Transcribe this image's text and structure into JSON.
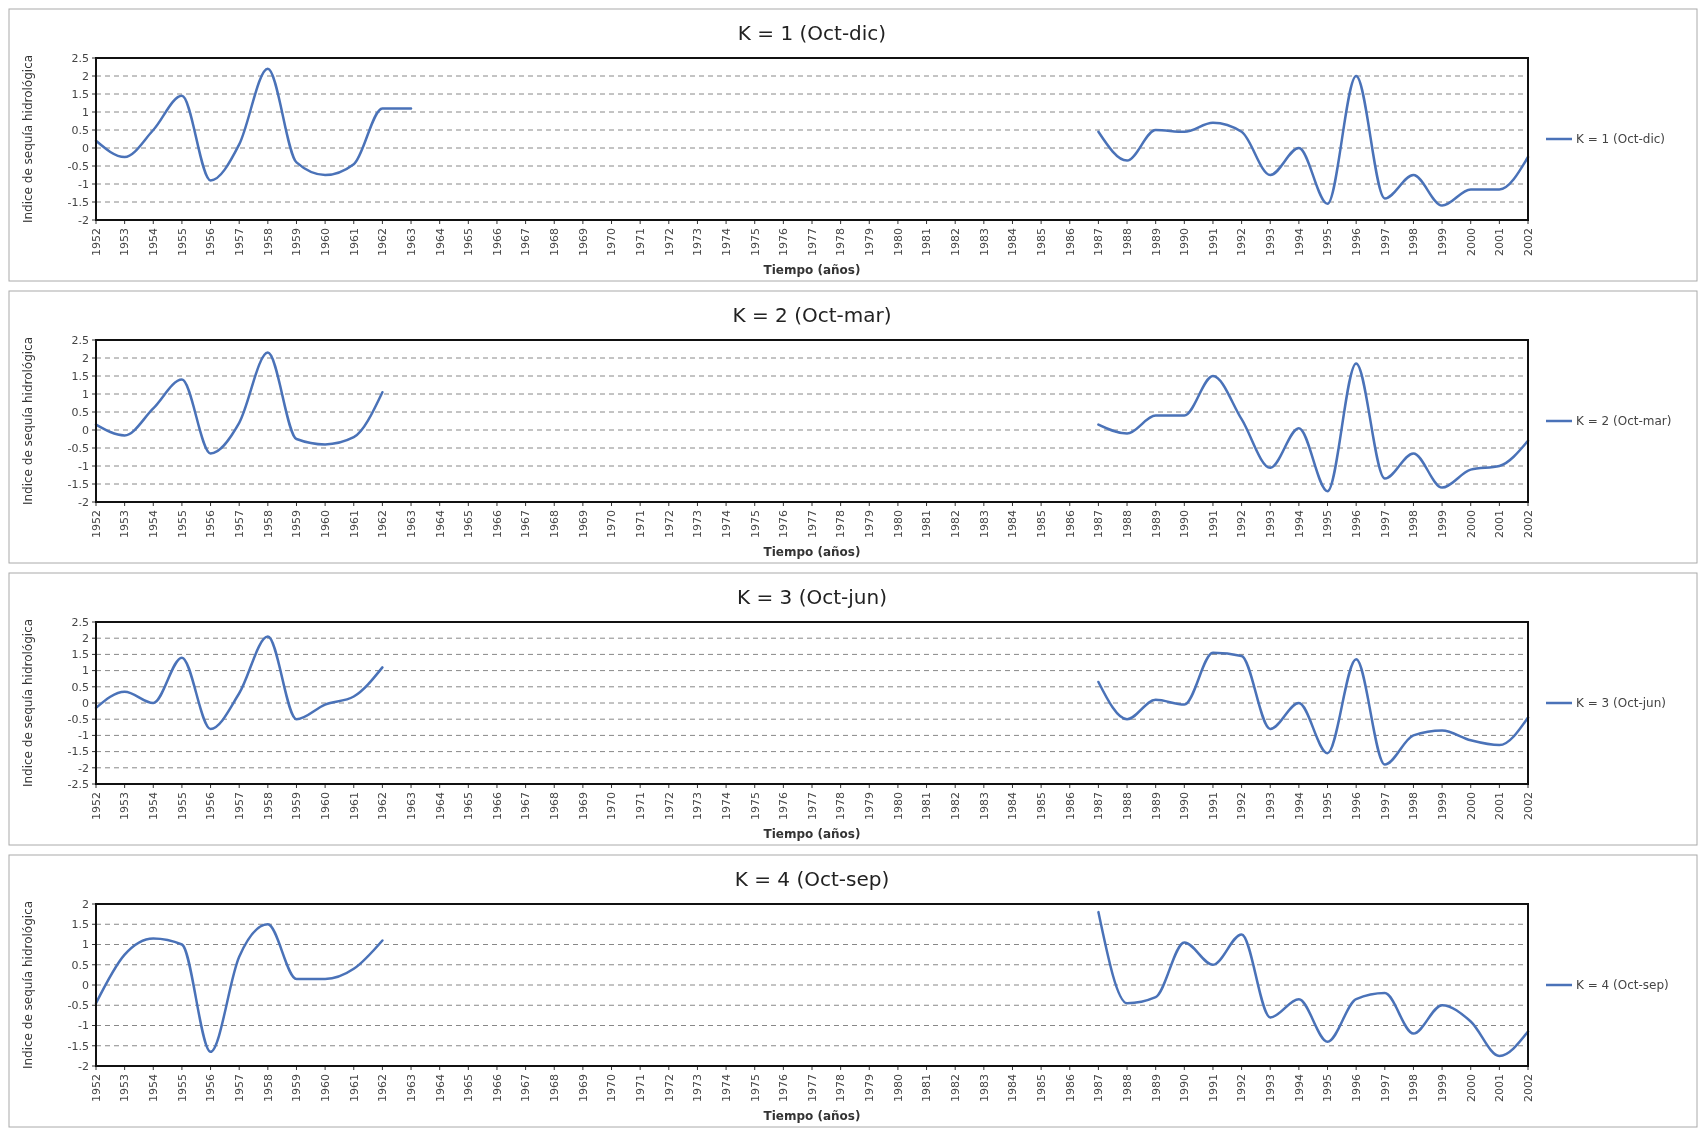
{
  "chart_data": [
    {
      "type": "line",
      "title": "K = 1 (Oct-dic)",
      "xlabel": "Tiempo (años)",
      "ylabel": "Indice de sequía hidrológica",
      "categories": [
        "1952",
        "1953",
        "1954",
        "1955",
        "1956",
        "1957",
        "1958",
        "1959",
        "1960",
        "1961",
        "1962",
        "1963",
        "1964",
        "1965",
        "1966",
        "1967",
        "1968",
        "1969",
        "1970",
        "1971",
        "1972",
        "1973",
        "1974",
        "1975",
        "1976",
        "1977",
        "1978",
        "1979",
        "1980",
        "1981",
        "1982",
        "1983",
        "1984",
        "1985",
        "1986",
        "1987",
        "1988",
        "1989",
        "1990",
        "1991",
        "1992",
        "1993",
        "1994",
        "1995",
        "1996",
        "1997",
        "1998",
        "1999",
        "2000",
        "2001",
        "2002"
      ],
      "series": [
        {
          "name": "K = 1 (Oct-dic)",
          "color": "#4a72b8",
          "values": [
            0.2,
            -0.25,
            0.5,
            1.45,
            -0.9,
            0.1,
            2.2,
            -0.4,
            -0.75,
            -0.45,
            1.1,
            1.1,
            null,
            null,
            null,
            null,
            null,
            null,
            null,
            null,
            null,
            null,
            null,
            null,
            null,
            null,
            null,
            null,
            null,
            null,
            null,
            null,
            null,
            null,
            null,
            0.45,
            -0.35,
            0.5,
            0.45,
            0.7,
            0.45,
            -0.75,
            0,
            -1.55,
            2,
            -1.4,
            -0.75,
            -1.6,
            -1.15,
            -1.15,
            -0.25
          ]
        }
      ],
      "ylim": [
        -2,
        2.5
      ],
      "yticks": [
        -2,
        -1.5,
        -1,
        -0.5,
        0,
        0.5,
        1,
        1.5,
        2,
        2.5
      ],
      "grid": "y",
      "legend": "right",
      "line_style": "solid"
    },
    {
      "type": "line",
      "title": "K = 2 (Oct-mar)",
      "xlabel": "Tiempo (años)",
      "ylabel": "Indice de sequía hidrológica",
      "categories": [
        "1952",
        "1953",
        "1954",
        "1955",
        "1956",
        "1957",
        "1958",
        "1959",
        "1960",
        "1961",
        "1962",
        "1963",
        "1964",
        "1965",
        "1966",
        "1967",
        "1968",
        "1969",
        "1970",
        "1971",
        "1972",
        "1973",
        "1974",
        "1975",
        "1976",
        "1977",
        "1978",
        "1979",
        "1980",
        "1981",
        "1982",
        "1983",
        "1984",
        "1985",
        "1986",
        "1987",
        "1988",
        "1989",
        "1990",
        "1991",
        "1992",
        "1993",
        "1994",
        "1995",
        "1996",
        "1997",
        "1998",
        "1999",
        "2000",
        "2001",
        "2002"
      ],
      "series": [
        {
          "name": "K = 2 (Oct-mar)",
          "color": "#4a72b8",
          "values": [
            0.15,
            -0.15,
            0.6,
            1.4,
            -0.65,
            0.2,
            2.15,
            -0.25,
            -0.4,
            -0.2,
            1.05,
            null,
            null,
            null,
            null,
            null,
            null,
            null,
            null,
            null,
            null,
            null,
            null,
            null,
            null,
            null,
            null,
            null,
            null,
            null,
            null,
            null,
            null,
            null,
            null,
            0.15,
            -0.1,
            0.4,
            0.4,
            1.5,
            0.3,
            -1.05,
            0.05,
            -1.7,
            1.85,
            -1.35,
            -0.65,
            -1.6,
            -1.1,
            -1,
            -0.3
          ]
        }
      ],
      "ylim": [
        -2,
        2.5
      ],
      "yticks": [
        -2,
        -1.5,
        -1,
        -0.5,
        0,
        0.5,
        1,
        1.5,
        2,
        2.5
      ],
      "grid": "y",
      "legend": "right",
      "line_style": "solid"
    },
    {
      "type": "line",
      "title": "K = 3 (Oct-jun)",
      "xlabel": "Tiempo (años)",
      "ylabel": "Indice de sequía hidrológica",
      "categories": [
        "1952",
        "1953",
        "1954",
        "1955",
        "1956",
        "1957",
        "1958",
        "1959",
        "1960",
        "1961",
        "1962",
        "1963",
        "1964",
        "1965",
        "1966",
        "1967",
        "1968",
        "1969",
        "1970",
        "1971",
        "1972",
        "1973",
        "1974",
        "1975",
        "1976",
        "1977",
        "1978",
        "1979",
        "1980",
        "1981",
        "1982",
        "1983",
        "1984",
        "1985",
        "1986",
        "1987",
        "1988",
        "1989",
        "1990",
        "1991",
        "1992",
        "1993",
        "1994",
        "1995",
        "1996",
        "1997",
        "1998",
        "1999",
        "2000",
        "2001",
        "2002"
      ],
      "series": [
        {
          "name": "K = 3 (Oct-jun)",
          "color": "#4a72b8",
          "values": [
            -0.15,
            0.35,
            0,
            1.4,
            -0.8,
            0.3,
            2.05,
            -0.5,
            -0.05,
            0.2,
            1.1,
            null,
            null,
            null,
            null,
            null,
            null,
            null,
            null,
            null,
            null,
            null,
            null,
            null,
            null,
            null,
            null,
            null,
            null,
            null,
            null,
            null,
            null,
            null,
            null,
            0.65,
            -0.5,
            0.1,
            -0.05,
            1.55,
            1.45,
            -0.8,
            0,
            -1.55,
            1.35,
            -1.9,
            -1,
            -0.85,
            -1.15,
            -1.3,
            -0.45
          ]
        }
      ],
      "ylim": [
        -2.5,
        2.5
      ],
      "yticks": [
        -2.5,
        -2,
        -1.5,
        -1,
        -0.5,
        0,
        0.5,
        1,
        1.5,
        2,
        2.5
      ],
      "grid": "y",
      "legend": "right",
      "line_style": "solid"
    },
    {
      "type": "line",
      "title": "K = 4 (Oct-sep)",
      "xlabel": "Tiempo (años)",
      "ylabel": "Indice de sequía hidrológica",
      "categories": [
        "1952",
        "1953",
        "1954",
        "1955",
        "1956",
        "1957",
        "1958",
        "1959",
        "1960",
        "1961",
        "1962",
        "1963",
        "1964",
        "1965",
        "1966",
        "1967",
        "1968",
        "1969",
        "1970",
        "1971",
        "1972",
        "1973",
        "1974",
        "1975",
        "1976",
        "1977",
        "1978",
        "1979",
        "1980",
        "1981",
        "1982",
        "1983",
        "1984",
        "1985",
        "1986",
        "1987",
        "1988",
        "1989",
        "1990",
        "1991",
        "1992",
        "1993",
        "1994",
        "1995",
        "1996",
        "1997",
        "1998",
        "1999",
        "2000",
        "2001",
        "2002"
      ],
      "series": [
        {
          "name": "K = 4 (Oct-sep)",
          "color": "#4a72b8",
          "values": [
            -0.45,
            0.75,
            1.15,
            1,
            -1.65,
            0.7,
            1.5,
            0.15,
            0.15,
            0.4,
            1.1,
            null,
            null,
            null,
            null,
            null,
            null,
            null,
            null,
            null,
            null,
            null,
            null,
            null,
            null,
            null,
            null,
            null,
            null,
            null,
            null,
            null,
            null,
            null,
            null,
            1.8,
            -0.45,
            -0.3,
            1.05,
            0.5,
            1.25,
            -0.8,
            -0.35,
            -1.4,
            -0.35,
            -0.2,
            -1.2,
            -0.5,
            -0.9,
            -1.75,
            -1.15
          ]
        }
      ],
      "ylim": [
        -2,
        2
      ],
      "yticks": [
        -2,
        -1.5,
        -1,
        -0.5,
        0,
        0.5,
        1,
        1.5,
        2
      ],
      "grid": "y",
      "legend": "right",
      "line_style": "solid"
    }
  ]
}
